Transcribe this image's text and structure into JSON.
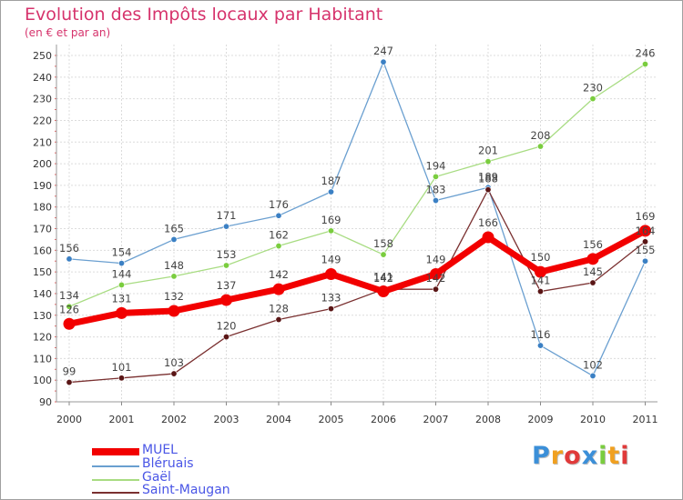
{
  "chart_data": {
    "type": "line",
    "title": "Evolution des Impôts locaux par Habitant",
    "subtitle": "(en € et par an)",
    "xlabel": "",
    "ylabel": "",
    "ylim": [
      90,
      255
    ],
    "yticks": [
      90,
      100,
      110,
      120,
      130,
      140,
      150,
      160,
      170,
      180,
      190,
      200,
      210,
      220,
      230,
      240,
      250
    ],
    "grid": true,
    "legend": "bottom-left",
    "x": [
      "2000",
      "2001",
      "2002",
      "2003",
      "2004",
      "2005",
      "2006",
      "2007",
      "2008",
      "2009",
      "2010",
      "2011"
    ],
    "series": [
      {
        "name": "Bléruais",
        "color": "#6a9fd0",
        "marker": "#3b80c4",
        "width": 1.3,
        "values": [
          156,
          154,
          165,
          171,
          176,
          187,
          247,
          183,
          189,
          116,
          102,
          155
        ]
      },
      {
        "name": "Gaël",
        "color": "#a8dc82",
        "marker": "#7acd3e",
        "width": 1.3,
        "values": [
          134,
          144,
          148,
          153,
          162,
          169,
          158,
          194,
          201,
          208,
          230,
          246
        ]
      },
      {
        "name": "Saint-Maugan",
        "color": "#7a3030",
        "marker": "#5a1616",
        "width": 1.3,
        "values": [
          99,
          101,
          103,
          120,
          128,
          133,
          142,
          142,
          188,
          141,
          145,
          164
        ]
      },
      {
        "name": "MUEL",
        "color": "#f20000",
        "marker": "#f20000",
        "width": 7,
        "values": [
          126,
          131,
          132,
          137,
          142,
          149,
          141,
          149,
          166,
          150,
          156,
          169
        ]
      }
    ],
    "data_labels": [
      {
        "series": 0,
        "index": 0,
        "text": "156"
      },
      {
        "series": 0,
        "index": 1,
        "text": "154"
      },
      {
        "series": 0,
        "index": 2,
        "text": "165"
      },
      {
        "series": 0,
        "index": 3,
        "text": "171"
      },
      {
        "series": 0,
        "index": 4,
        "text": "176"
      },
      {
        "series": 0,
        "index": 5,
        "text": "187"
      },
      {
        "series": 0,
        "index": 6,
        "text": "247"
      },
      {
        "series": 0,
        "index": 7,
        "text": "183"
      },
      {
        "series": 0,
        "index": 8,
        "text": "189"
      },
      {
        "series": 0,
        "index": 9,
        "text": "116"
      },
      {
        "series": 0,
        "index": 10,
        "text": "102"
      },
      {
        "series": 0,
        "index": 11,
        "text": "155"
      },
      {
        "series": 1,
        "index": 0,
        "text": "134"
      },
      {
        "series": 1,
        "index": 1,
        "text": "144"
      },
      {
        "series": 1,
        "index": 2,
        "text": "148"
      },
      {
        "series": 1,
        "index": 3,
        "text": "153"
      },
      {
        "series": 1,
        "index": 4,
        "text": "162"
      },
      {
        "series": 1,
        "index": 5,
        "text": "169"
      },
      {
        "series": 1,
        "index": 6,
        "text": "158"
      },
      {
        "series": 1,
        "index": 7,
        "text": "194"
      },
      {
        "series": 1,
        "index": 8,
        "text": "201"
      },
      {
        "series": 1,
        "index": 9,
        "text": "208"
      },
      {
        "series": 1,
        "index": 10,
        "text": "230"
      },
      {
        "series": 1,
        "index": 11,
        "text": "246"
      },
      {
        "series": 2,
        "index": 0,
        "text": "99"
      },
      {
        "series": 2,
        "index": 1,
        "text": "101"
      },
      {
        "series": 2,
        "index": 2,
        "text": "103"
      },
      {
        "series": 2,
        "index": 3,
        "text": "120"
      },
      {
        "series": 2,
        "index": 4,
        "text": "128"
      },
      {
        "series": 2,
        "index": 5,
        "text": "133"
      },
      {
        "series": 2,
        "index": 6,
        "text": "142"
      },
      {
        "series": 2,
        "index": 7,
        "text": "142"
      },
      {
        "series": 2,
        "index": 8,
        "text": "188"
      },
      {
        "series": 2,
        "index": 9,
        "text": "141"
      },
      {
        "series": 2,
        "index": 10,
        "text": "145"
      },
      {
        "series": 2,
        "index": 11,
        "text": "164"
      },
      {
        "series": 3,
        "index": 0,
        "text": "126"
      },
      {
        "series": 3,
        "index": 1,
        "text": "131"
      },
      {
        "series": 3,
        "index": 2,
        "text": "132"
      },
      {
        "series": 3,
        "index": 3,
        "text": "137"
      },
      {
        "series": 3,
        "index": 4,
        "text": "142"
      },
      {
        "series": 3,
        "index": 5,
        "text": "149"
      },
      {
        "series": 3,
        "index": 6,
        "text": "141"
      },
      {
        "series": 3,
        "index": 7,
        "text": "149"
      },
      {
        "series": 3,
        "index": 8,
        "text": "166"
      },
      {
        "series": 3,
        "index": 9,
        "text": "150"
      },
      {
        "series": 3,
        "index": 10,
        "text": "156"
      },
      {
        "series": 3,
        "index": 11,
        "text": "169"
      }
    ]
  },
  "legend": {
    "items": [
      {
        "label": "MUEL",
        "color": "#f20000"
      },
      {
        "label": "Bléruais",
        "color": "#6a9fd0"
      },
      {
        "label": "Gaël",
        "color": "#a8dc82"
      },
      {
        "label": "Saint-Maugan",
        "color": "#7a3030"
      }
    ]
  },
  "logo": {
    "letters": [
      "P",
      "r",
      "o",
      "x",
      "i",
      "t",
      "i"
    ],
    "colors": [
      "#3b8fd8",
      "#f0a020",
      "#e03a3a",
      "#3b8fd8",
      "#7acd3e",
      "#f0a020",
      "#e03a3a"
    ]
  }
}
